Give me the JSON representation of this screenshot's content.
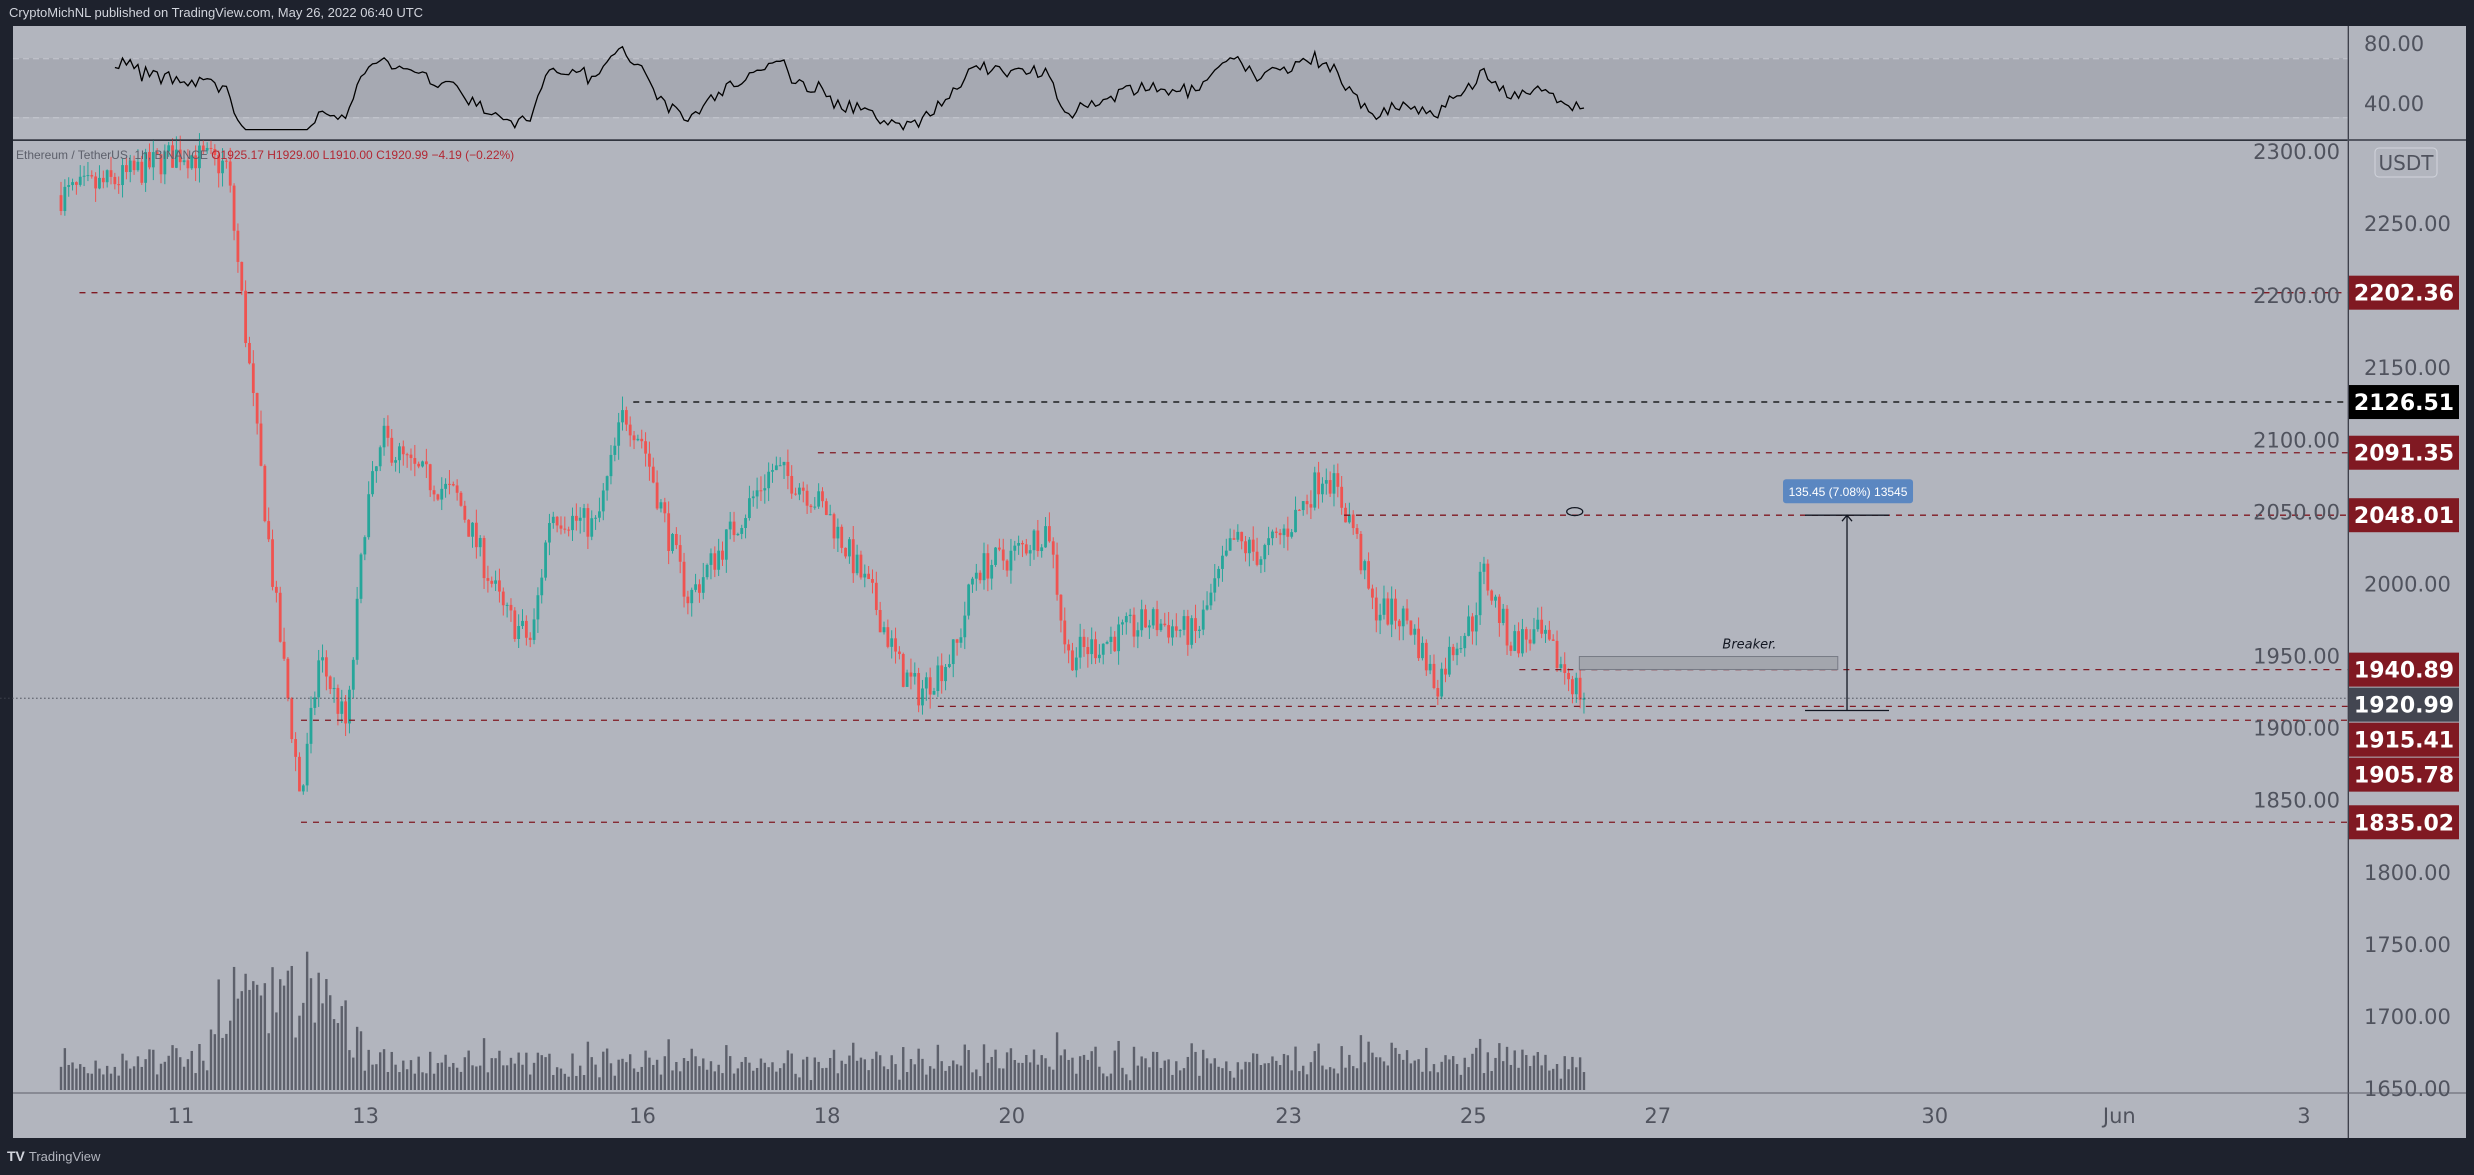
{
  "header": {
    "publish_text": "CryptoMichNL published on TradingView.com, May 26, 2022 06:40 UTC"
  },
  "legend": {
    "symbol": "Ethereum / TetherUS, 1h, BINANCE",
    "open": "O1925.17",
    "high": "H1929.00",
    "low": "L1910.00",
    "close": "C1920.99",
    "change": "−4.19 (−0.22%)"
  },
  "currency_badge": "USDT",
  "rsi_axis": {
    "ticks": [
      "80.00",
      "40.00"
    ],
    "band": [
      30,
      70
    ]
  },
  "price_axis": {
    "ticks": [
      "2300.00",
      "2250.00",
      "2200.00",
      "2150.00",
      "2100.00",
      "2050.00",
      "2000.00",
      "1950.00",
      "1900.00",
      "1850.00",
      "1800.00",
      "1750.00",
      "1700.00",
      "1650.00"
    ]
  },
  "time_axis": {
    "ticks": [
      {
        "label": "11",
        "day": 11
      },
      {
        "label": "13",
        "day": 13
      },
      {
        "label": "16",
        "day": 16
      },
      {
        "label": "18",
        "day": 18
      },
      {
        "label": "20",
        "day": 20
      },
      {
        "label": "23",
        "day": 23
      },
      {
        "label": "25",
        "day": 25
      },
      {
        "label": "27",
        "day": 27
      },
      {
        "label": "30",
        "day": 30
      },
      {
        "label": "Jun",
        "day": 32
      },
      {
        "label": "3",
        "day": 34
      }
    ]
  },
  "levels": [
    {
      "price_label": "2202.36",
      "price": 2202.36,
      "from_day": 9.9,
      "style": "red-dash",
      "badge": "#801922"
    },
    {
      "price_label": "2126.51",
      "price": 2126.51,
      "from_day": 15.9,
      "style": "black-dash",
      "badge": "#000000"
    },
    {
      "price_label": "2091.35",
      "price": 2091.35,
      "from_day": 17.9,
      "style": "red-dash",
      "badge": "#801922"
    },
    {
      "price_label": "2048.01",
      "price": 2048.01,
      "from_day": 23.6,
      "style": "red-dash",
      "badge": "#801922"
    },
    {
      "price_label": "1940.89",
      "price": 1940.89,
      "from_day": 25.5,
      "style": "red-dash",
      "badge": "#801922"
    },
    {
      "price_label": "1920.99",
      "price": 1920.99,
      "from_day": 9.0,
      "style": "current-dotted",
      "badge": "#434651"
    },
    {
      "price_label": "1915.41",
      "price": 1915.41,
      "from_day": 19.2,
      "style": "red-dash",
      "badge": "#801922"
    },
    {
      "price_label": "1905.78",
      "price": 1905.78,
      "from_day": 12.3,
      "style": "red-dash",
      "badge": "#801922"
    },
    {
      "price_label": "1835.02",
      "price": 1835.02,
      "from_day": 12.3,
      "style": "red-dash",
      "badge": "#801922"
    }
  ],
  "annotations": {
    "breaker_label": "Breaker.",
    "breaker_zone": {
      "from_day": 26.15,
      "to_day": 28.95,
      "top": 1950,
      "bottom": 1941
    },
    "measure_label": "135.45 (7.08%) 13545",
    "measure": {
      "day": 29.05,
      "from_price": 1912.56,
      "to_price": 2048.01
    }
  },
  "chart_data": {
    "type": "candlestick",
    "symbol": "Ethereum / TetherUS",
    "interval": "1h",
    "price_path": [
      {
        "day": 9.7,
        "price": 2270
      },
      {
        "day": 10.3,
        "price": 2280
      },
      {
        "day": 11,
        "price": 2300
      },
      {
        "day": 11.5,
        "price": 2290
      },
      {
        "day": 12,
        "price": 2000
      },
      {
        "day": 12.3,
        "price": 1850
      },
      {
        "day": 12.5,
        "price": 1950
      },
      {
        "day": 12.8,
        "price": 1900
      },
      {
        "day": 13,
        "price": 2050
      },
      {
        "day": 13.2,
        "price": 2100
      },
      {
        "day": 13.5,
        "price": 2080
      },
      {
        "day": 14,
        "price": 2060
      },
      {
        "day": 14.5,
        "price": 1980
      },
      {
        "day": 14.8,
        "price": 1960
      },
      {
        "day": 15,
        "price": 2050
      },
      {
        "day": 15.5,
        "price": 2040
      },
      {
        "day": 15.8,
        "price": 2120
      },
      {
        "day": 16,
        "price": 2100
      },
      {
        "day": 16.3,
        "price": 2030
      },
      {
        "day": 16.5,
        "price": 1990
      },
      {
        "day": 17,
        "price": 2040
      },
      {
        "day": 17.4,
        "price": 2080
      },
      {
        "day": 17.7,
        "price": 2070
      },
      {
        "day": 18,
        "price": 2050
      },
      {
        "day": 18.5,
        "price": 1990
      },
      {
        "day": 18.8,
        "price": 1940
      },
      {
        "day": 19,
        "price": 1925
      },
      {
        "day": 19.4,
        "price": 1955
      },
      {
        "day": 19.6,
        "price": 2010
      },
      {
        "day": 20,
        "price": 2020
      },
      {
        "day": 20.4,
        "price": 2040
      },
      {
        "day": 20.6,
        "price": 1950
      },
      {
        "day": 21,
        "price": 1960
      },
      {
        "day": 21.5,
        "price": 1975
      },
      {
        "day": 22,
        "price": 1965
      },
      {
        "day": 22.4,
        "price": 2030
      },
      {
        "day": 22.7,
        "price": 2020
      },
      {
        "day": 23,
        "price": 2040
      },
      {
        "day": 23.4,
        "price": 2080
      },
      {
        "day": 23.7,
        "price": 2040
      },
      {
        "day": 23.9,
        "price": 1985
      },
      {
        "day": 24.3,
        "price": 1975
      },
      {
        "day": 24.6,
        "price": 1930
      },
      {
        "day": 24.8,
        "price": 1960
      },
      {
        "day": 25,
        "price": 1975
      },
      {
        "day": 25.1,
        "price": 2010
      },
      {
        "day": 25.4,
        "price": 1960
      },
      {
        "day": 25.7,
        "price": 1965
      },
      {
        "day": 26,
        "price": 1940
      },
      {
        "day": 26.2,
        "price": 1920.99
      }
    ],
    "ylim": [
      1640,
      2305
    ],
    "xlim_days": [
      9.6,
      35.2
    ],
    "colors": {
      "up": "#26a69a",
      "down": "#ef5350",
      "background": "#b2b5be",
      "level": "#801922",
      "rsi_line": "#000000",
      "volume": "#5d606b"
    }
  }
}
